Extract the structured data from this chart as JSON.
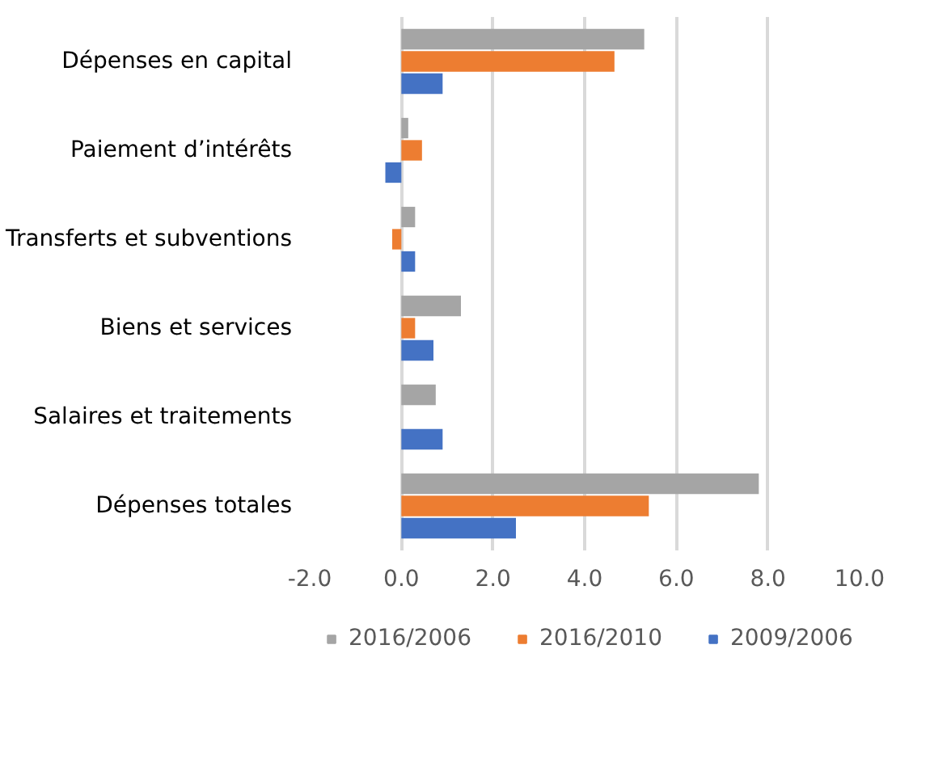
{
  "chart_data": {
    "type": "bar",
    "orientation": "horizontal",
    "categories": [
      "Dépenses en capital",
      "Paiement d’intérêts",
      "Transferts et subventions",
      "Biens et services",
      "Salaires et traitements",
      "Dépenses totales"
    ],
    "series": [
      {
        "name": "2016/2006",
        "color": "#a5a5a5",
        "values": [
          5.3,
          0.15,
          0.3,
          1.3,
          0.75,
          7.8
        ]
      },
      {
        "name": "2016/2010",
        "color": "#ed7d31",
        "values": [
          4.65,
          0.45,
          -0.2,
          0.3,
          null,
          5.4
        ]
      },
      {
        "name": "2009/2006",
        "color": "#4472c4",
        "values": [
          0.9,
          -0.35,
          0.3,
          0.7,
          0.9,
          2.5
        ]
      }
    ],
    "xlim": [
      -2,
      10
    ],
    "xticks": [
      {
        "value": -2,
        "label": "-2.0"
      },
      {
        "value": 0,
        "label": "0.0"
      },
      {
        "value": 2,
        "label": "2.0"
      },
      {
        "value": 4,
        "label": "4.0"
      },
      {
        "value": 6,
        "label": "6.0"
      },
      {
        "value": 8,
        "label": "8.0"
      },
      {
        "value": 10,
        "label": "10.0"
      }
    ],
    "grid": "x",
    "legend": "bottom"
  }
}
